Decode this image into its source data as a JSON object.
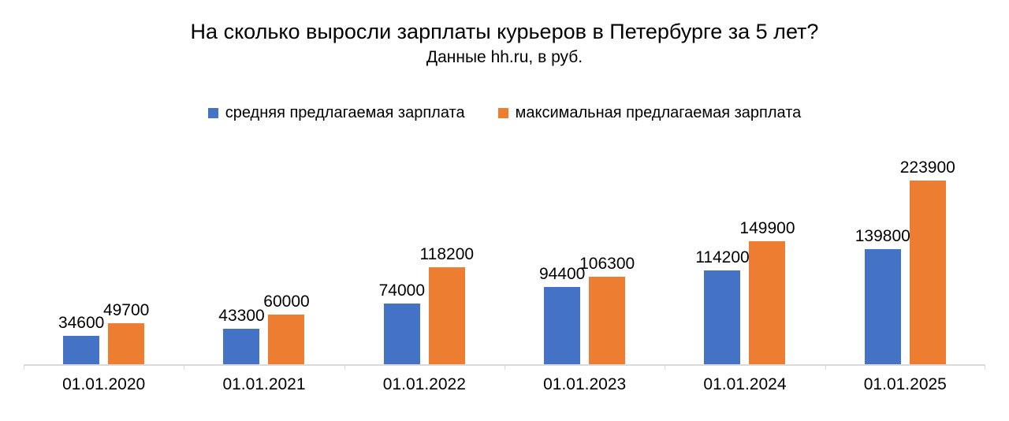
{
  "chart_data": {
    "type": "bar",
    "title": "На сколько выросли зарплаты курьеров в Петербурге за 5 лет?",
    "subtitle": "Данные hh.ru, в руб.",
    "categories": [
      "01.01.2020",
      "01.01.2021",
      "01.01.2022",
      "01.01.2023",
      "01.01.2024",
      "01.01.2025"
    ],
    "series": [
      {
        "name": "средняя предлагаемая зарплата",
        "color": "#4472C4",
        "values": [
          34600,
          43300,
          74000,
          94400,
          114200,
          139800
        ]
      },
      {
        "name": "максимальная предлагаемая зарплата",
        "color": "#ED7D31",
        "values": [
          49700,
          60000,
          118200,
          106300,
          149900,
          223900
        ]
      }
    ],
    "xlabel": "",
    "ylabel": "",
    "ylim": [
      0,
      240000
    ],
    "grid": false,
    "legend_position": "top",
    "data_labels": true,
    "axis_color": "#D9D9D9",
    "text_color": "#000000"
  }
}
